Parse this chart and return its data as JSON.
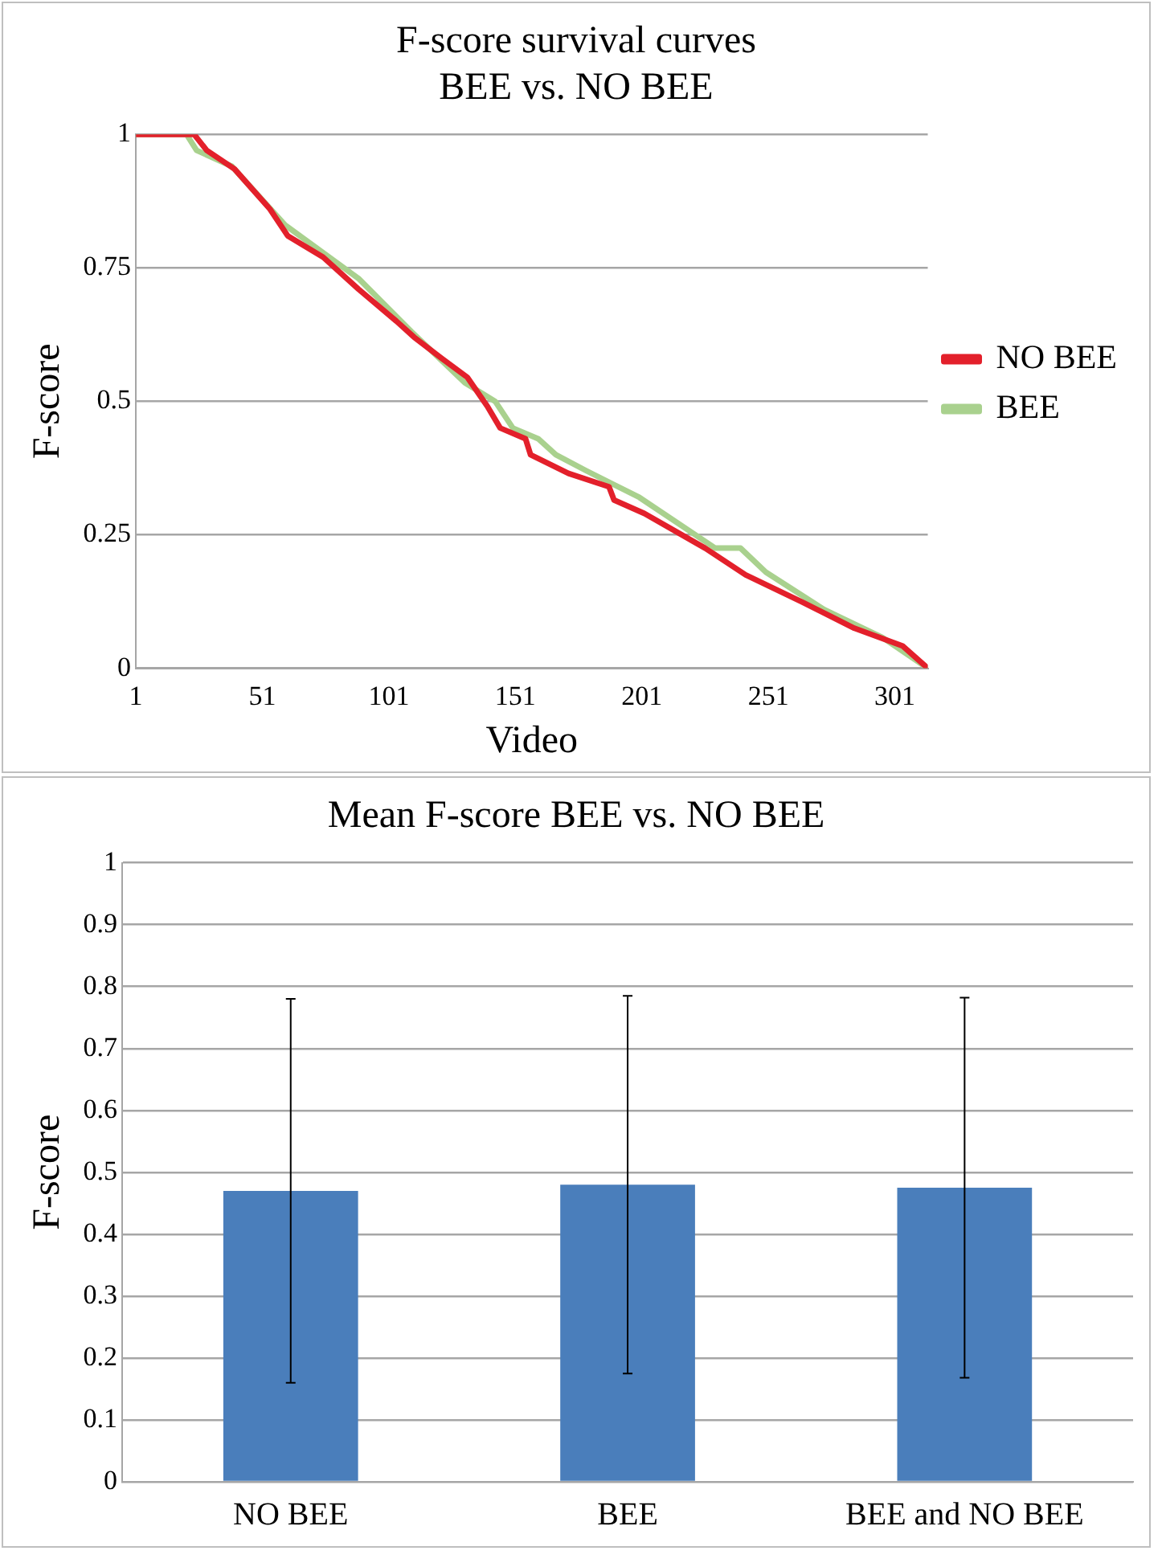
{
  "chart_data": [
    {
      "type": "line",
      "title": "F-score survival curves\nBEE vs. NO BEE",
      "xlabel": "Video",
      "ylabel": "F-score",
      "xlim": [
        1,
        314
      ],
      "xticks": [
        1,
        51,
        101,
        151,
        201,
        251,
        301
      ],
      "ylim": [
        0,
        1
      ],
      "yticks": [
        0,
        0.25,
        0.5,
        0.75,
        1
      ],
      "grid": "y",
      "legend": "right",
      "marker": "none",
      "line_style": "solid",
      "series": [
        {
          "name": "NO BEE",
          "color": "#e3202b",
          "x": [
            1,
            24,
            29,
            40,
            54,
            61,
            75,
            89,
            104,
            111,
            122,
            132,
            140,
            145,
            155,
            157,
            172,
            188,
            190,
            202,
            226,
            242,
            264,
            285,
            304,
            314
          ],
          "values": [
            1,
            1,
            0.97,
            0.935,
            0.86,
            0.81,
            0.77,
            0.71,
            0.65,
            0.62,
            0.58,
            0.545,
            0.49,
            0.45,
            0.43,
            0.4,
            0.365,
            0.34,
            0.315,
            0.29,
            0.225,
            0.175,
            0.125,
            0.075,
            0.042,
            0
          ]
        },
        {
          "name": "BEE",
          "color": "#a9d18e",
          "x": [
            1,
            21,
            25,
            39,
            60,
            89,
            110,
            131,
            143,
            150,
            160,
            167,
            179,
            200,
            230,
            240,
            250,
            273,
            296,
            314
          ],
          "values": [
            1,
            1,
            0.97,
            0.94,
            0.83,
            0.73,
            0.63,
            0.535,
            0.5,
            0.45,
            0.43,
            0.4,
            0.37,
            0.32,
            0.225,
            0.225,
            0.18,
            0.11,
            0.058,
            0
          ]
        }
      ]
    },
    {
      "type": "bar",
      "title": "Mean F-score BEE vs. NO BEE",
      "ylabel": "F-score",
      "categories": [
        "NO BEE",
        "BEE",
        "BEE and NO BEE"
      ],
      "values": [
        0.47,
        0.48,
        0.475
      ],
      "errors": [
        0.31,
        0.305,
        0.307
      ],
      "color": "#4a7ebb",
      "ylim": [
        0,
        1
      ],
      "yticks": [
        0,
        0.1,
        0.2,
        0.3,
        0.4,
        0.5,
        0.6,
        0.7,
        0.8,
        0.9,
        1
      ],
      "grid": "y",
      "legend": false
    }
  ]
}
